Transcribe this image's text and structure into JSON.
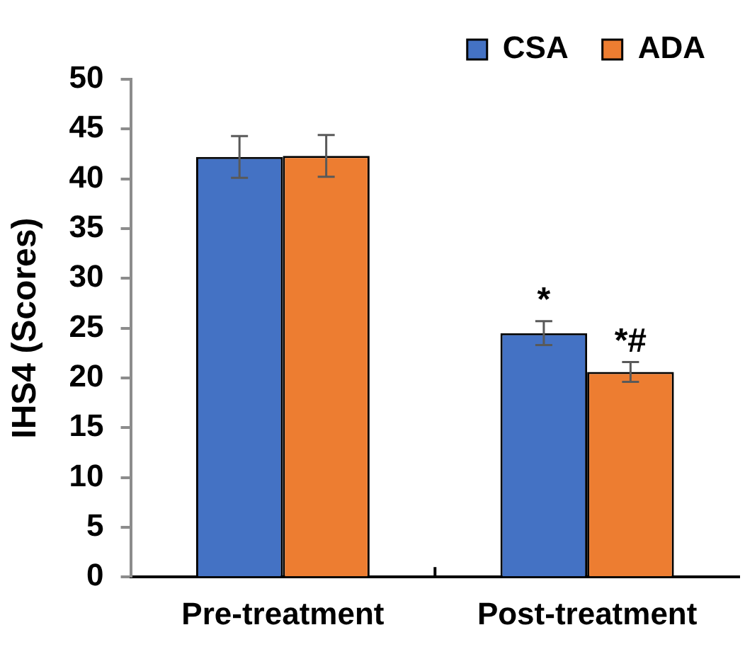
{
  "chart_data": {
    "type": "bar",
    "ylabel": "IHS4 (Scores)",
    "categories": [
      "Pre-treatment",
      "Post-treatment"
    ],
    "series": [
      {
        "name": "CSA",
        "color": "#4472c4",
        "values": [
          42.2,
          24.5
        ],
        "errors": [
          2.1,
          1.2
        ]
      },
      {
        "name": "ADA",
        "color": "#ed7d31",
        "values": [
          42.3,
          20.6
        ],
        "errors": [
          2.1,
          1.0
        ]
      }
    ],
    "ylim": [
      0,
      50
    ],
    "yticks": [
      0,
      5,
      10,
      15,
      20,
      25,
      30,
      35,
      40,
      45,
      50
    ],
    "grid": false,
    "legend": "top right",
    "annotations": [
      {
        "text": "*",
        "x": "Post-treatment",
        "y": 24.5
      },
      {
        "text": "*#",
        "x": "Post-treatment",
        "y": 20.6
      }
    ]
  }
}
